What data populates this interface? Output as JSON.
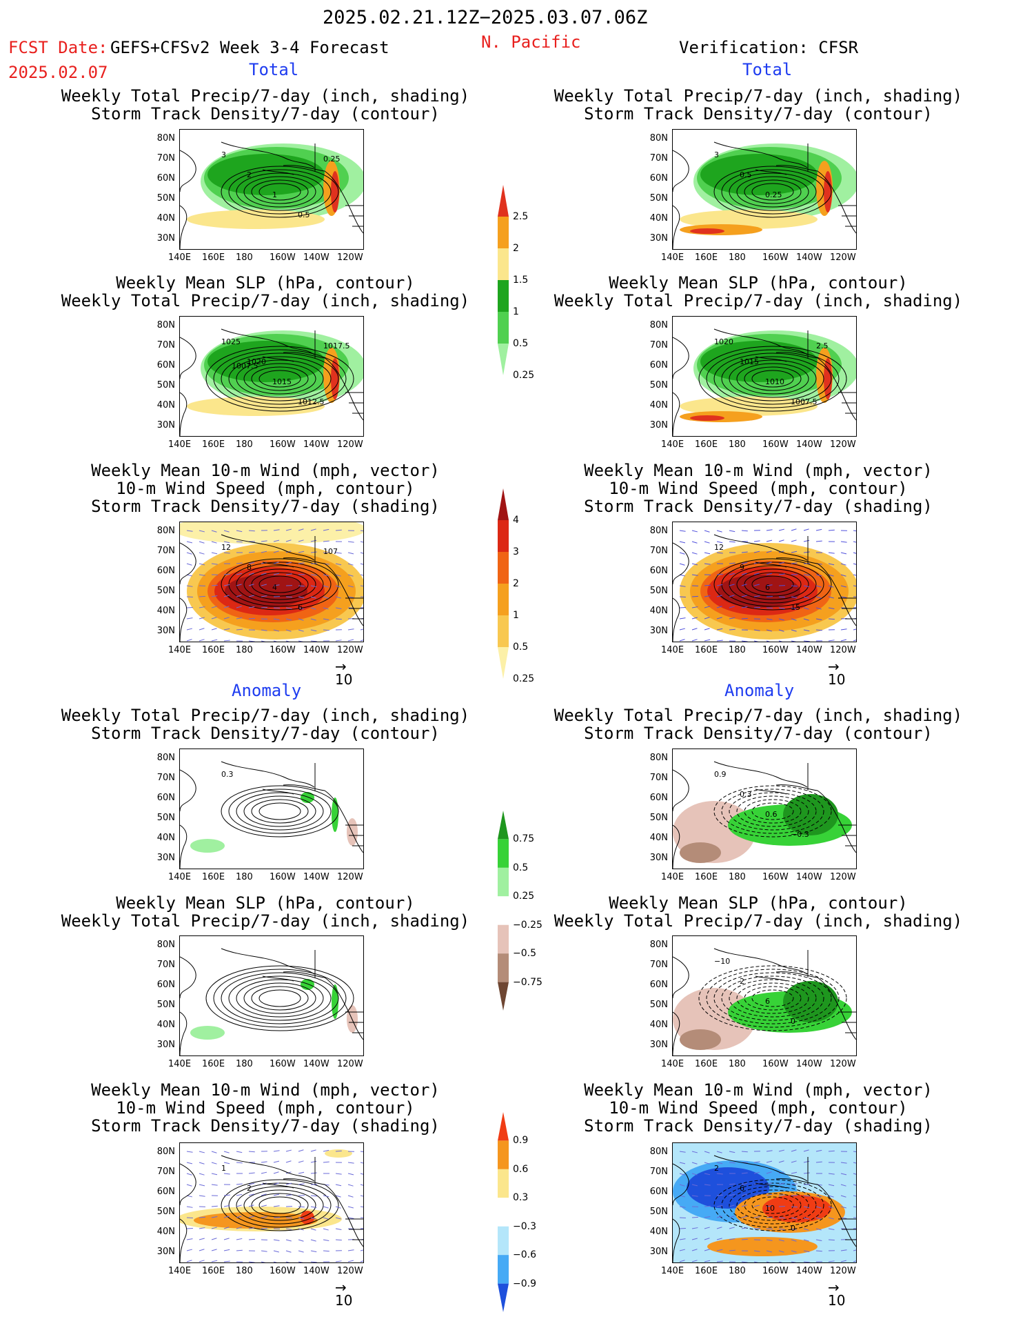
{
  "header": {
    "date_range": "2025.02.21.12Z−2025.03.07.06Z",
    "fcst_label": "FCST Date:",
    "model": "GEFS+CFSv2 Week 3-4 Forecast",
    "fcst_date": "2025.02.07",
    "region": "N. Pacific",
    "verification": "Verification: CFSR"
  },
  "sections": {
    "total": "Total",
    "anomaly": "Anomaly"
  },
  "panel_titles": {
    "p_storm": [
      "Weekly Total Precip/7-day (inch, shading)",
      "Storm Track Density/7-day (contour)"
    ],
    "p_slp": [
      "Weekly Mean SLP (hPa, contour)",
      "Weekly Total Precip/7-day (inch, shading)"
    ],
    "p_wind": [
      "Weekly Mean 10-m Wind (mph, vector)",
      "10-m Wind Speed (mph, contour)",
      "Storm Track Density/7-day (shading)"
    ]
  },
  "axes": {
    "lat_ticks": [
      "80N",
      "70N",
      "60N",
      "50N",
      "40N",
      "30N"
    ],
    "lon_ticks": [
      "140E",
      "160E",
      "180",
      "160W",
      "140W",
      "120W"
    ]
  },
  "vector_ref": "10",
  "colorbars": {
    "precip_total": {
      "labels": [
        "2.5",
        "2",
        "1.5",
        "1",
        "0.5",
        "0.25"
      ],
      "colors": [
        "#e0321e",
        "#f5a01e",
        "#fbe68c",
        "#1ea51e",
        "#50d050",
        "#a0f0a0"
      ]
    },
    "storm_total": {
      "labels": [
        "4",
        "3",
        "2",
        "1",
        "0.5",
        "0.25"
      ],
      "colors": [
        "#a01414",
        "#dc2814",
        "#f06414",
        "#f5a01e",
        "#f8c850",
        "#fcf0a8"
      ]
    },
    "precip_anom": {
      "labels": [
        "0.75",
        "0.5",
        "0.25",
        "−0.25",
        "−0.5",
        "−0.75"
      ],
      "colors": [
        "#1e961e",
        "#37d237",
        "#a0f0a0",
        "#ffffff",
        "#e6c3b9",
        "#b48c78",
        "#6e4632"
      ]
    },
    "storm_anom": {
      "labels": [
        "0.9",
        "0.6",
        "0.3",
        "−0.3",
        "−0.6",
        "−0.9"
      ],
      "colors": [
        "#f03c14",
        "#f5961e",
        "#fbe68c",
        "#ffffff",
        "#b4e6fa",
        "#46aaf5",
        "#1e50dc"
      ]
    }
  },
  "map_annotations": {
    "L1": [
      "3",
      "2",
      "1",
      "0.5",
      "0.25"
    ],
    "R1": [
      "3",
      "0.5",
      "0.25"
    ],
    "L2": [
      "1025",
      "1020",
      "1015",
      "1012.5",
      "1017.5",
      "1007.5"
    ],
    "R2": [
      "1020",
      "1015",
      "1010",
      "1007.5",
      "2.5"
    ],
    "L3": [
      "12",
      "8",
      "4",
      "6",
      "107"
    ],
    "R3": [
      "12",
      "9",
      "6",
      "15"
    ],
    "L4": [
      "0.3"
    ],
    "R4": [
      "0.9",
      "0.3",
      "0.6",
      "−0.3"
    ],
    "L5": [],
    "R5": [
      "−10",
      "2",
      "6",
      "0"
    ],
    "L6": [
      "1",
      "2"
    ],
    "R6": [
      "2",
      "6",
      "10",
      "0"
    ]
  }
}
